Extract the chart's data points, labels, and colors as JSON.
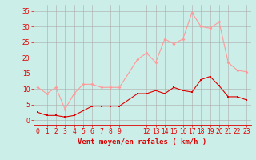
{
  "x": [
    0,
    1,
    2,
    3,
    4,
    5,
    6,
    7,
    8,
    9,
    11,
    12,
    13,
    14,
    15,
    16,
    17,
    18,
    19,
    20,
    21,
    22,
    23
  ],
  "vent_moyen": [
    2.5,
    1.5,
    1.5,
    1.0,
    1.5,
    3.0,
    4.5,
    4.5,
    4.5,
    4.5,
    8.5,
    8.5,
    9.5,
    8.5,
    10.5,
    9.5,
    9.0,
    13.0,
    14.0,
    11.0,
    7.5,
    7.5,
    6.5
  ],
  "rafales": [
    10.5,
    8.5,
    10.5,
    3.5,
    8.5,
    11.5,
    11.5,
    10.5,
    10.5,
    10.5,
    19.5,
    21.5,
    18.5,
    26.0,
    24.5,
    26.0,
    34.5,
    30.0,
    29.5,
    31.5,
    18.5,
    16.0,
    15.5
  ],
  "vent_moyen_color": "#dd0000",
  "rafales_color": "#ff9999",
  "background_color": "#cceee8",
  "grid_color": "#aaaaaa",
  "tick_color": "#dd0000",
  "spine_color": "#dd0000",
  "xlabel": "Vent moyen/en rafales ( km/h )",
  "xlabel_color": "#dd0000",
  "yticks": [
    0,
    5,
    10,
    15,
    20,
    25,
    30,
    35
  ],
  "ylim": [
    -1.5,
    37
  ],
  "xlim": [
    -0.5,
    23.5
  ],
  "xtick_labels": [
    "0",
    "1",
    "2",
    "3",
    "4",
    "5",
    "6",
    "7",
    "8",
    "9",
    "",
    "12",
    "13",
    "14",
    "15",
    "16",
    "17",
    "18",
    "19",
    "20",
    "21",
    "22",
    "23"
  ],
  "xtick_positions": [
    0,
    1,
    2,
    3,
    4,
    5,
    6,
    7,
    8,
    9,
    11,
    12,
    13,
    14,
    15,
    16,
    17,
    18,
    19,
    20,
    21,
    22,
    23
  ],
  "linewidth": 0.8,
  "markersize": 2.0
}
